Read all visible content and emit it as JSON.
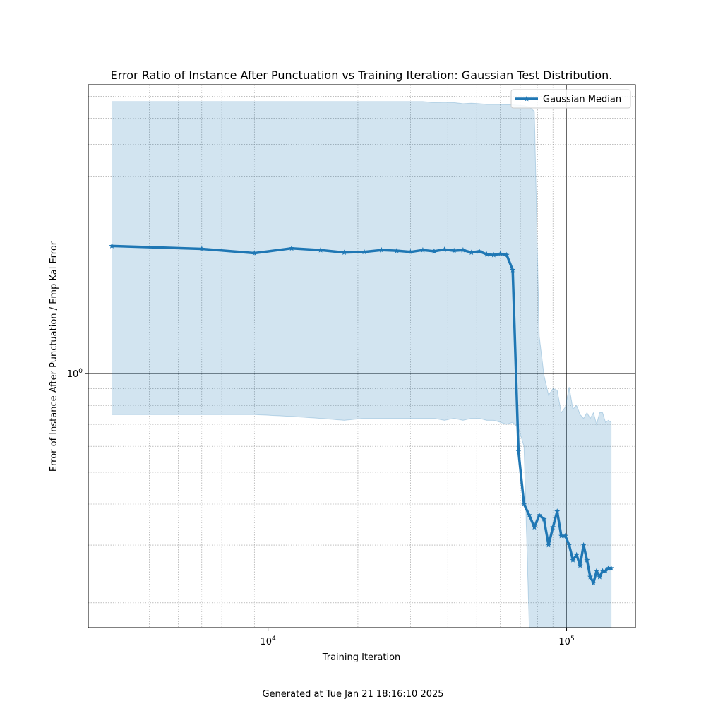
{
  "chart_data": {
    "type": "line",
    "title": "Error Ratio of Instance After Punctuation vs Training Iteration: Gaussian Test Distribution.",
    "xlabel": "Training Iteration",
    "ylabel": "Error of Instance After Punctuation / Emp Kal Error",
    "x_scale": "log",
    "y_scale": "log",
    "xlim": [
      2500,
      170000
    ],
    "ylim": [
      0.168,
      7.6
    ],
    "x_ticks": [
      {
        "value": 10000,
        "base": "10",
        "exp": "4"
      },
      {
        "value": 100000,
        "base": "10",
        "exp": "5"
      }
    ],
    "y_ticks": [
      {
        "value": 1,
        "base": "10",
        "exp": "0"
      }
    ],
    "grid": {
      "major": true,
      "minor": true
    },
    "legend_position": "upper-right",
    "series": [
      {
        "name": "Gaussian Median",
        "color": "#1f77b4",
        "marker": "star",
        "x": [
          3000,
          6000,
          9000,
          12000,
          15000,
          18000,
          21000,
          24000,
          27000,
          30000,
          33000,
          36000,
          39000,
          42000,
          45000,
          48000,
          51000,
          54000,
          57000,
          60000,
          63000,
          66000,
          69000,
          72000,
          75000,
          78000,
          81000,
          84000,
          87000,
          90000,
          93000,
          96000,
          99000,
          102000,
          105000,
          108000,
          111000,
          114000,
          117000,
          120000,
          123000,
          126000,
          129000,
          132000,
          135000,
          138000,
          141000
        ],
        "y": [
          2.45,
          2.4,
          2.33,
          2.41,
          2.38,
          2.34,
          2.35,
          2.38,
          2.37,
          2.35,
          2.38,
          2.36,
          2.39,
          2.37,
          2.38,
          2.34,
          2.36,
          2.31,
          2.3,
          2.32,
          2.3,
          2.07,
          0.58,
          0.4,
          0.37,
          0.34,
          0.37,
          0.36,
          0.3,
          0.34,
          0.38,
          0.32,
          0.32,
          0.3,
          0.27,
          0.28,
          0.26,
          0.3,
          0.27,
          0.24,
          0.23,
          0.25,
          0.24,
          0.25,
          0.25,
          0.255,
          0.255
        ],
        "band_upper": [
          6.75,
          6.75,
          6.75,
          6.75,
          6.75,
          6.75,
          6.75,
          6.75,
          6.75,
          6.75,
          6.75,
          6.7,
          6.72,
          6.7,
          6.65,
          6.67,
          6.65,
          6.62,
          6.62,
          6.62,
          6.6,
          6.6,
          6.58,
          6.56,
          6.5,
          6.3,
          1.3,
          0.99,
          0.86,
          0.9,
          0.89,
          0.76,
          0.79,
          0.91,
          0.78,
          0.8,
          0.75,
          0.73,
          0.76,
          0.73,
          0.76,
          0.7,
          0.76,
          0.76,
          0.71,
          0.72,
          0.71
        ],
        "band_lower": [
          0.75,
          0.75,
          0.75,
          0.74,
          0.73,
          0.72,
          0.73,
          0.73,
          0.73,
          0.73,
          0.73,
          0.73,
          0.72,
          0.73,
          0.72,
          0.73,
          0.73,
          0.72,
          0.72,
          0.71,
          0.7,
          0.71,
          0.68,
          0.6,
          0.168,
          0.168,
          0.168,
          0.168,
          0.168,
          0.168,
          0.168,
          0.168,
          0.168,
          0.168,
          0.168,
          0.168,
          0.168,
          0.168,
          0.168,
          0.168,
          0.168,
          0.168,
          0.168,
          0.168,
          0.168,
          0.168,
          0.168
        ]
      }
    ]
  },
  "footer": {
    "text": "Generated at Tue Jan 21 18:16:10 2025"
  }
}
